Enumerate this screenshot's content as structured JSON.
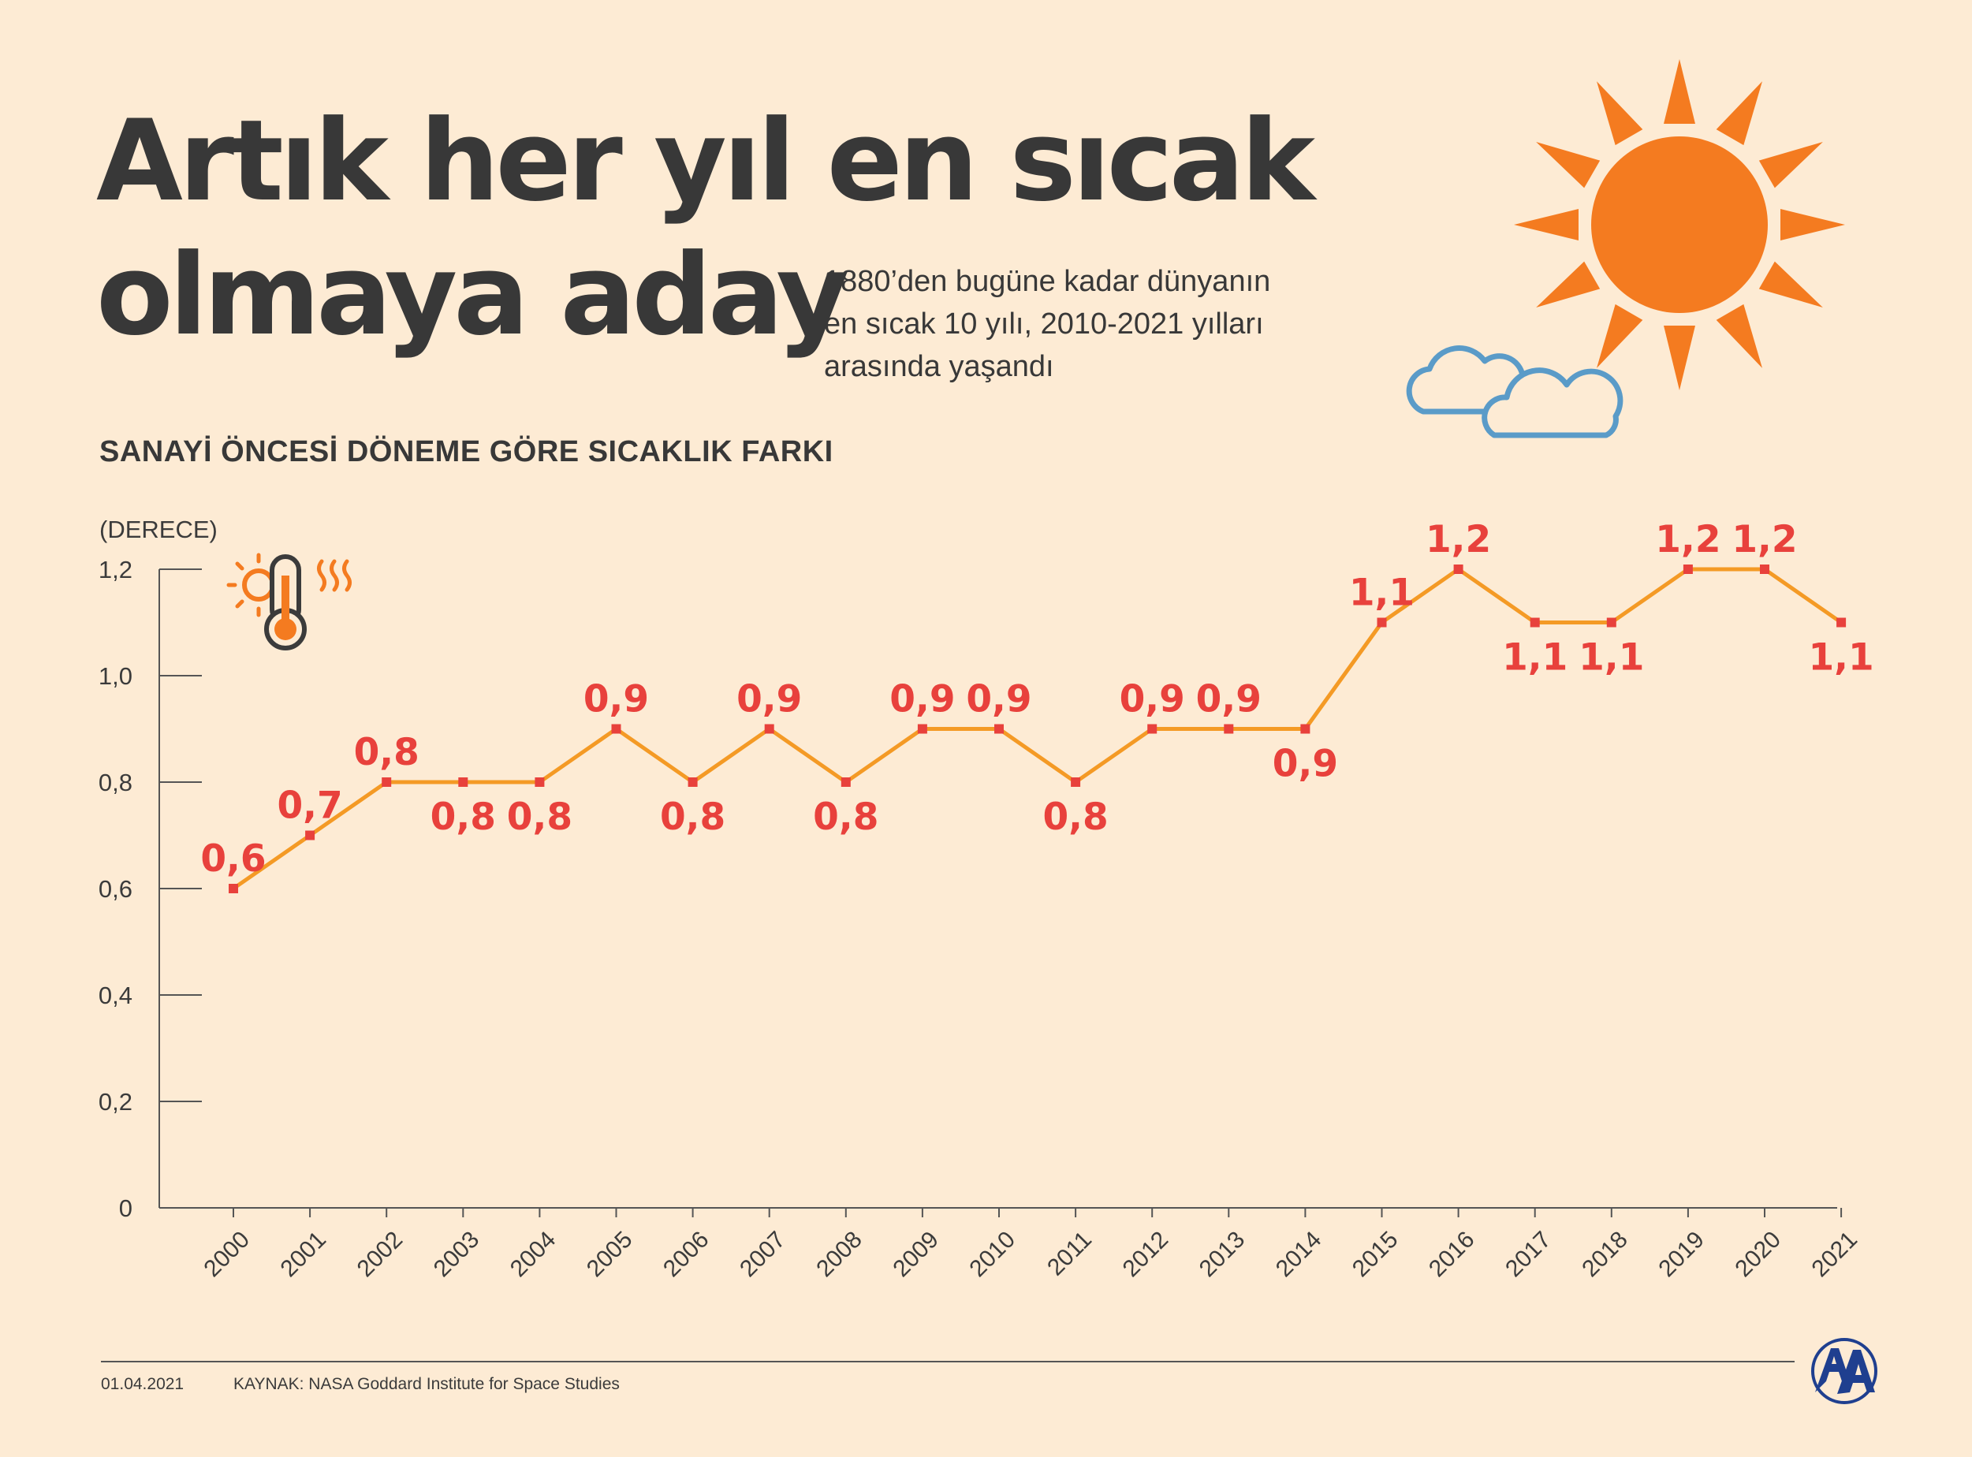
{
  "header": {
    "title_line1": "Artık her yıl en sıcak",
    "title_line2": "olmaya aday",
    "subtitle_line1": "1880’den bugüne kadar dünyanın",
    "subtitle_line2": "en sıcak 10 yılı, 2010-2021 yılları",
    "subtitle_line3": "arasında yaşandı"
  },
  "section_title": "SANAYİ ÖNCESİ DÖNEME GÖRE SICAKLIK FARKI",
  "icons": {
    "sun": "sun-icon",
    "clouds": "clouds-icon",
    "thermometer": "thermometer-icon",
    "logo": "aa-logo"
  },
  "colors": {
    "background": "#fdebd4",
    "sun": "#f47b20",
    "cloud": "#5a9bc8",
    "line": "#f49a25",
    "points": "#e8413c",
    "text": "#383838",
    "logo": "#1f3f8f"
  },
  "chart_data": {
    "type": "line",
    "ylabel": "(DERECE)",
    "ylim": [
      0,
      1.2
    ],
    "yticks": [
      "0",
      "0,2",
      "0,4",
      "0,6",
      "0,8",
      "1,0",
      "1,2"
    ],
    "categories": [
      "2000",
      "2001",
      "2002",
      "2003",
      "2004",
      "2005",
      "2006",
      "2007",
      "2008",
      "2009",
      "2010",
      "2011",
      "2012",
      "2013",
      "2014",
      "2015",
      "2016",
      "2017",
      "2018",
      "2019",
      "2020",
      "2021"
    ],
    "values": [
      0.6,
      0.7,
      0.8,
      0.8,
      0.8,
      0.9,
      0.8,
      0.9,
      0.8,
      0.9,
      0.9,
      0.8,
      0.9,
      0.9,
      0.9,
      1.1,
      1.2,
      1.1,
      1.1,
      1.2,
      1.2,
      1.1
    ],
    "labels": [
      "0,6",
      "0,7",
      "0,8",
      "0,8",
      "0,8",
      "0,9",
      "0,8",
      "0,9",
      "0,8",
      "0,9",
      "0,9",
      "0,8",
      "0,9",
      "0,9",
      "0,9",
      "1,1",
      "1,2",
      "1,1",
      "1,1",
      "1,2",
      "1,2",
      "1,1"
    ],
    "label_positions": [
      "above",
      "above",
      "above",
      "below",
      "below",
      "above",
      "below",
      "above",
      "below",
      "above",
      "above",
      "below",
      "above",
      "above",
      "below",
      "above",
      "above",
      "below",
      "below",
      "above",
      "above",
      "below"
    ],
    "grid": false
  },
  "footer": {
    "date": "01.04.2021",
    "source": "KAYNAK: NASA Goddard Institute for Space Studies"
  }
}
